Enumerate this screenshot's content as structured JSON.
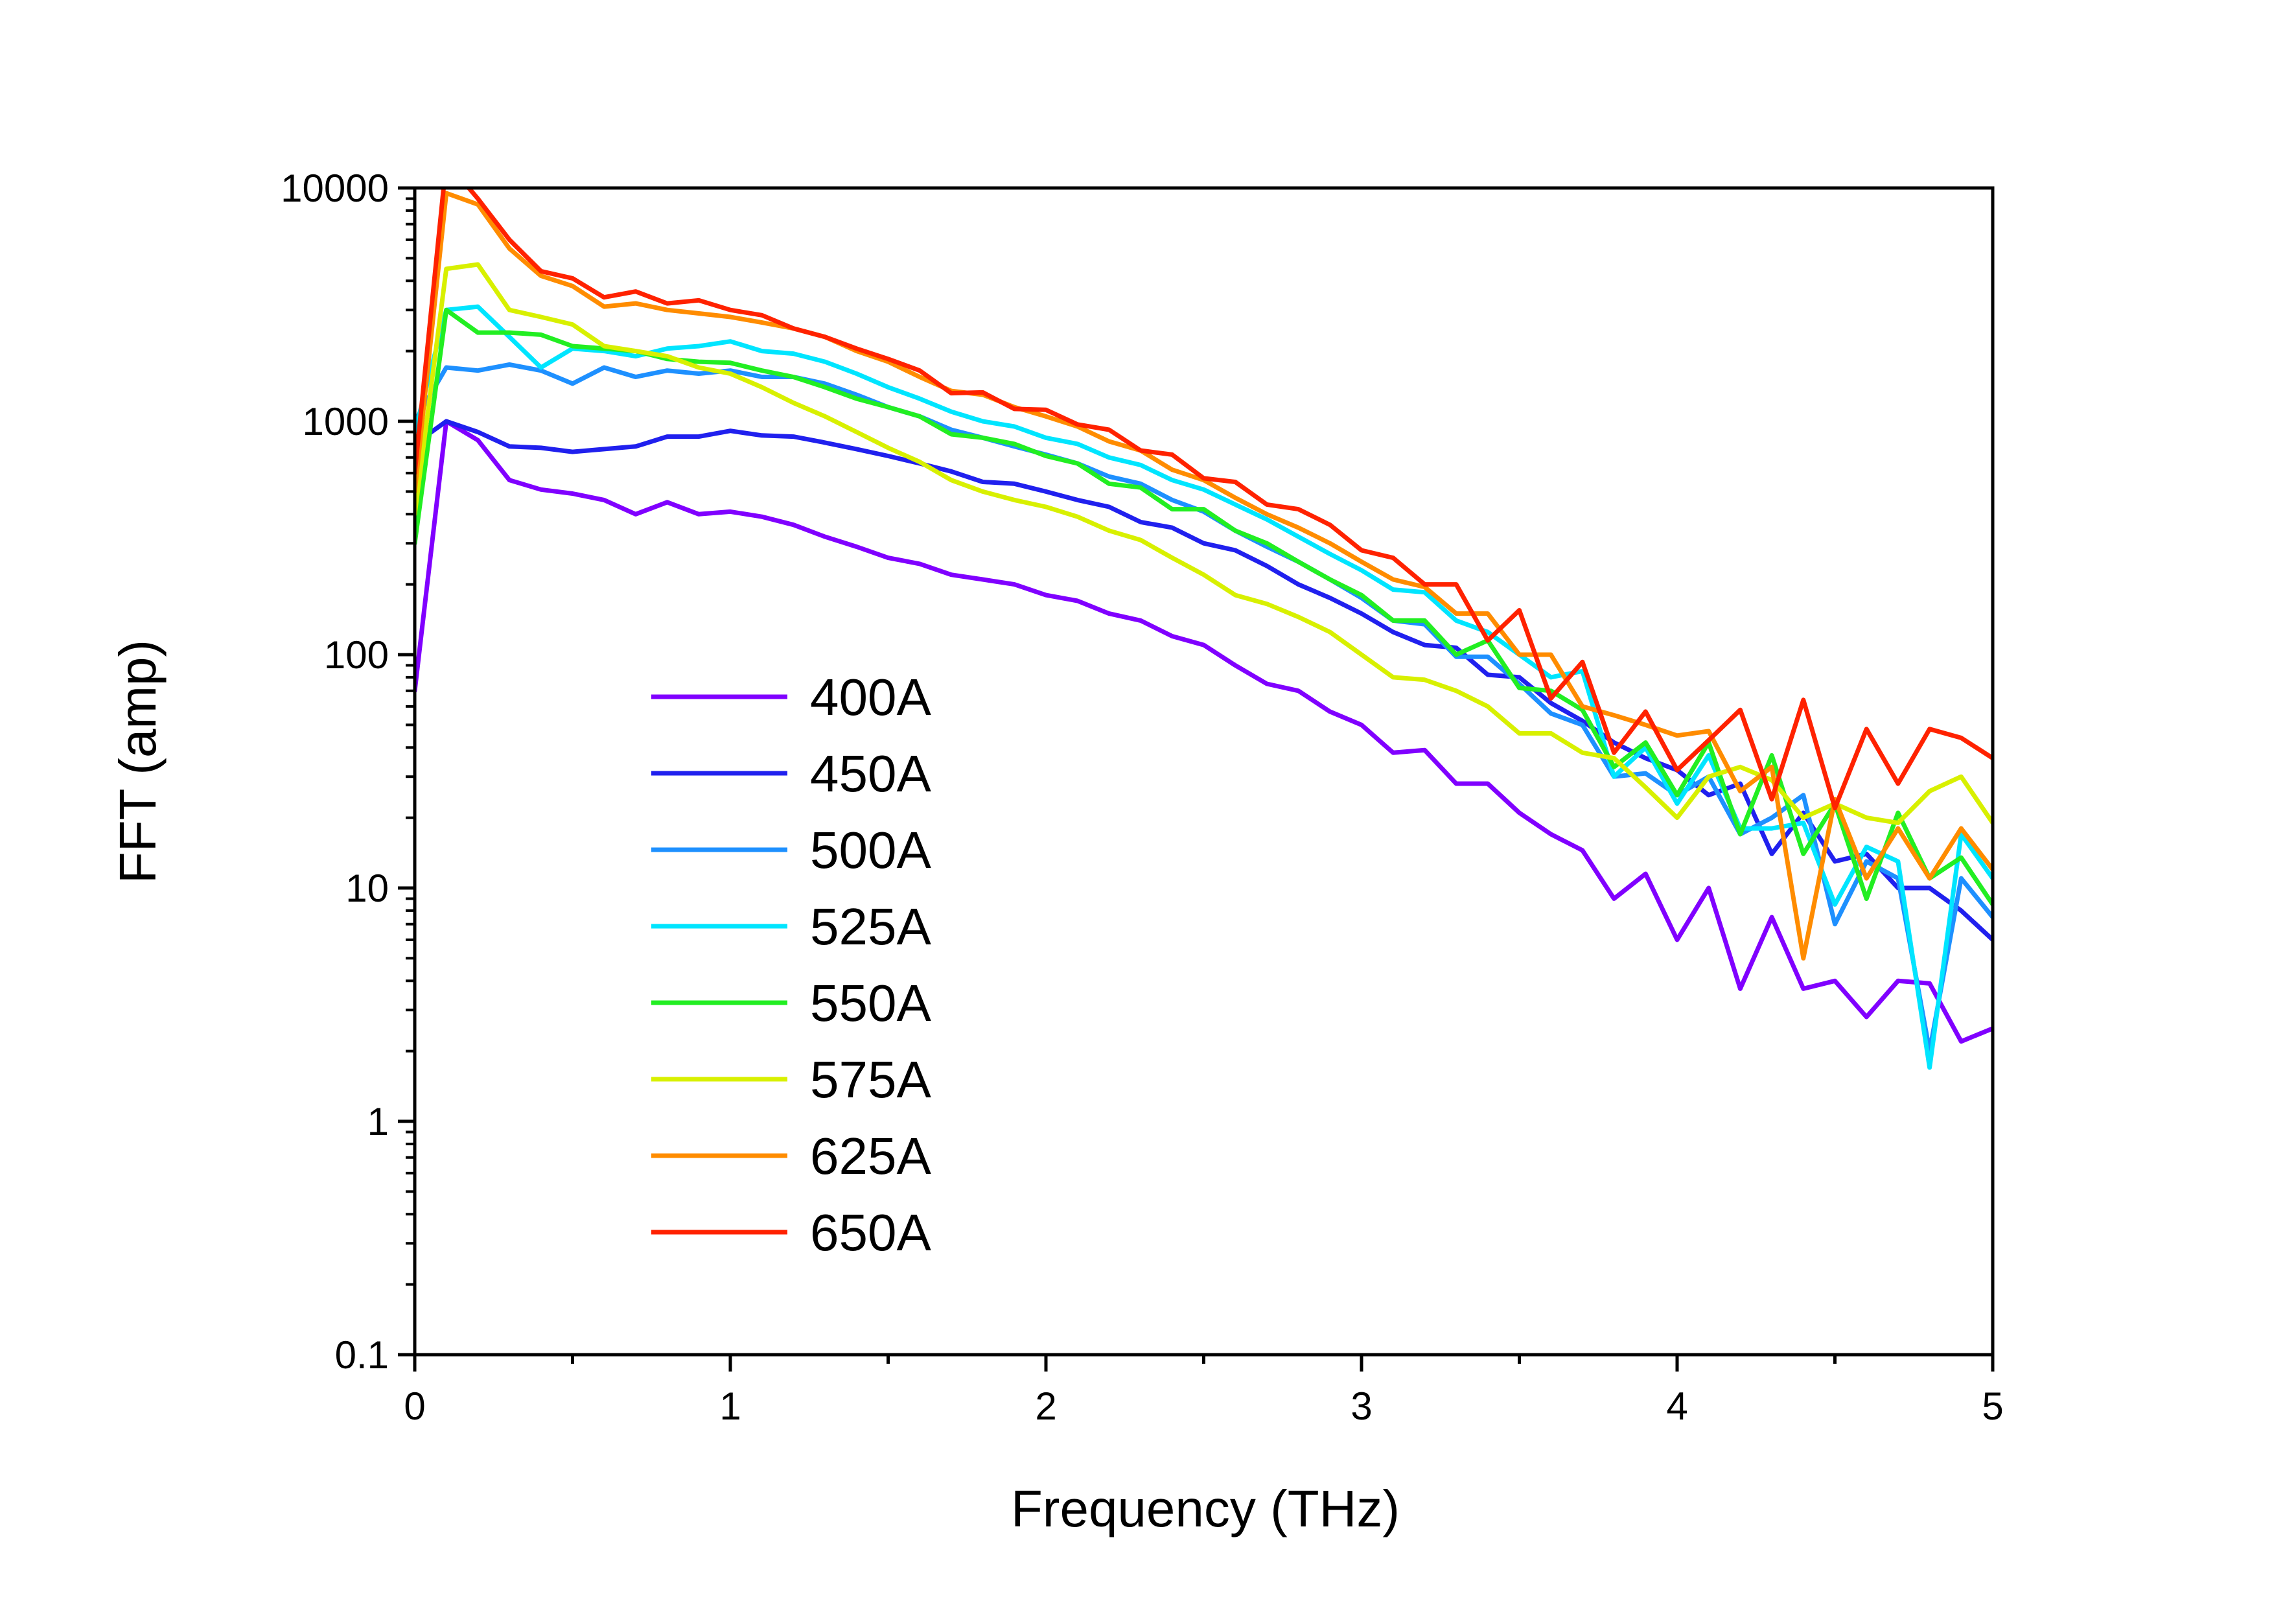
{
  "chart_data": {
    "type": "line",
    "xlabel": "Frequency (THz)",
    "ylabel": "FFT (amp)",
    "xlim": [
      0,
      5
    ],
    "ylim": [
      0.1,
      10000
    ],
    "y_scale": "log",
    "grid": false,
    "legend_position": "lower-left",
    "x_ticks": [
      "0",
      "1",
      "2",
      "3",
      "4",
      "5"
    ],
    "y_ticks": [
      "0.1",
      "1",
      "10",
      "100",
      "1000",
      "10000"
    ],
    "x": [
      0,
      0.1,
      0.2,
      0.3,
      0.4,
      0.5,
      0.6,
      0.7,
      0.8,
      0.9,
      1.0,
      1.1,
      1.2,
      1.3,
      1.4,
      1.5,
      1.6,
      1.7,
      1.8,
      1.9,
      2.0,
      2.1,
      2.2,
      2.3,
      2.4,
      2.5,
      2.6,
      2.7,
      2.8,
      2.9,
      3.0,
      3.1,
      3.2,
      3.3,
      3.4,
      3.5,
      3.6,
      3.7,
      3.8,
      3.9,
      4.0,
      4.1,
      4.2,
      4.3,
      4.4,
      4.5,
      4.6,
      4.7,
      4.8,
      4.9,
      5.0
    ],
    "series": [
      {
        "name": "400A",
        "color": "#8000ff",
        "values": [
          70,
          1000,
          830,
          560,
          510,
          490,
          460,
          400,
          450,
          400,
          410,
          390,
          360,
          320,
          290,
          260,
          245,
          220,
          210,
          200,
          180,
          170,
          150,
          140,
          120,
          110,
          90,
          75,
          70,
          57,
          50,
          38,
          39,
          28,
          28,
          21,
          17,
          14.5,
          9,
          11.5,
          6,
          10,
          3.7,
          7.5,
          3.7,
          4,
          2.8,
          4,
          3.9,
          2.2,
          2.5
        ]
      },
      {
        "name": "450A",
        "color": "#2020ee",
        "values": [
          800,
          1000,
          900,
          780,
          770,
          740,
          760,
          780,
          860,
          860,
          910,
          870,
          860,
          810,
          760,
          710,
          660,
          610,
          550,
          540,
          500,
          460,
          430,
          370,
          350,
          300,
          280,
          240,
          200,
          175,
          150,
          125,
          110,
          107,
          82,
          80,
          62,
          52,
          42,
          36,
          32,
          25,
          28,
          14,
          21,
          13,
          14,
          10,
          10,
          8,
          6
        ]
      },
      {
        "name": "500A",
        "color": "#1e90ff",
        "values": [
          1000,
          1700,
          1650,
          1750,
          1650,
          1450,
          1700,
          1550,
          1650,
          1600,
          1650,
          1550,
          1550,
          1450,
          1300,
          1150,
          1050,
          920,
          850,
          780,
          720,
          660,
          580,
          540,
          460,
          410,
          340,
          290,
          250,
          210,
          175,
          140,
          135,
          98,
          98,
          75,
          56,
          50,
          30,
          31,
          25,
          30,
          17,
          20,
          25,
          7,
          13,
          11,
          2,
          11,
          7.5
        ]
      },
      {
        "name": "525A",
        "color": "#00e5ff",
        "values": [
          900,
          3000,
          3100,
          2300,
          1700,
          2050,
          2000,
          1900,
          2050,
          2100,
          2200,
          2000,
          1950,
          1800,
          1600,
          1400,
          1250,
          1100,
          1000,
          950,
          850,
          800,
          700,
          650,
          560,
          510,
          440,
          380,
          320,
          270,
          230,
          190,
          185,
          140,
          125,
          100,
          80,
          85,
          30,
          40,
          23,
          37,
          18,
          18,
          19,
          8.5,
          15,
          13,
          1.7,
          17,
          11
        ]
      },
      {
        "name": "550A",
        "color": "#22ee22",
        "values": [
          300,
          3000,
          2400,
          2400,
          2350,
          2100,
          2050,
          2000,
          1850,
          1800,
          1780,
          1650,
          1550,
          1400,
          1250,
          1150,
          1050,
          880,
          850,
          800,
          710,
          660,
          540,
          520,
          420,
          420,
          340,
          300,
          250,
          210,
          180,
          140,
          140,
          100,
          115,
          72,
          70,
          58,
          33,
          42,
          25,
          42,
          17,
          37,
          14,
          23,
          9,
          21,
          11,
          13.5,
          8.5
        ]
      },
      {
        "name": "575A",
        "color": "#d8f000",
        "values": [
          400,
          4500,
          4700,
          3000,
          2800,
          2600,
          2100,
          2000,
          1900,
          1700,
          1600,
          1400,
          1200,
          1050,
          900,
          770,
          670,
          560,
          500,
          460,
          430,
          390,
          340,
          310,
          260,
          220,
          180,
          165,
          145,
          125,
          100,
          80,
          78,
          70,
          60,
          46,
          46,
          38,
          36,
          27,
          20,
          30,
          33,
          29,
          20,
          23,
          20,
          19,
          26,
          30,
          19
        ]
      },
      {
        "name": "625A",
        "color": "#ff8c00",
        "values": [
          500,
          9500,
          8500,
          5500,
          4200,
          3800,
          3100,
          3200,
          3000,
          2900,
          2800,
          2650,
          2500,
          2300,
          2000,
          1800,
          1550,
          1350,
          1300,
          1150,
          1050,
          950,
          820,
          750,
          620,
          560,
          470,
          400,
          350,
          300,
          250,
          210,
          195,
          150,
          150,
          100,
          100,
          60,
          55,
          50,
          45,
          47,
          26,
          33,
          5,
          24,
          11,
          18,
          11,
          18,
          12
        ]
      },
      {
        "name": "650A",
        "color": "#ff2200",
        "values": [
          600,
          13000,
          9000,
          6000,
          4400,
          4100,
          3400,
          3600,
          3200,
          3300,
          3000,
          2850,
          2500,
          2300,
          2050,
          1850,
          1650,
          1320,
          1330,
          1130,
          1120,
          970,
          920,
          750,
          720,
          570,
          550,
          440,
          420,
          360,
          280,
          260,
          200,
          200,
          115,
          155,
          65,
          93,
          38,
          57,
          32,
          43,
          58,
          24,
          64,
          22,
          48,
          28,
          48,
          44,
          36
        ]
      }
    ]
  }
}
